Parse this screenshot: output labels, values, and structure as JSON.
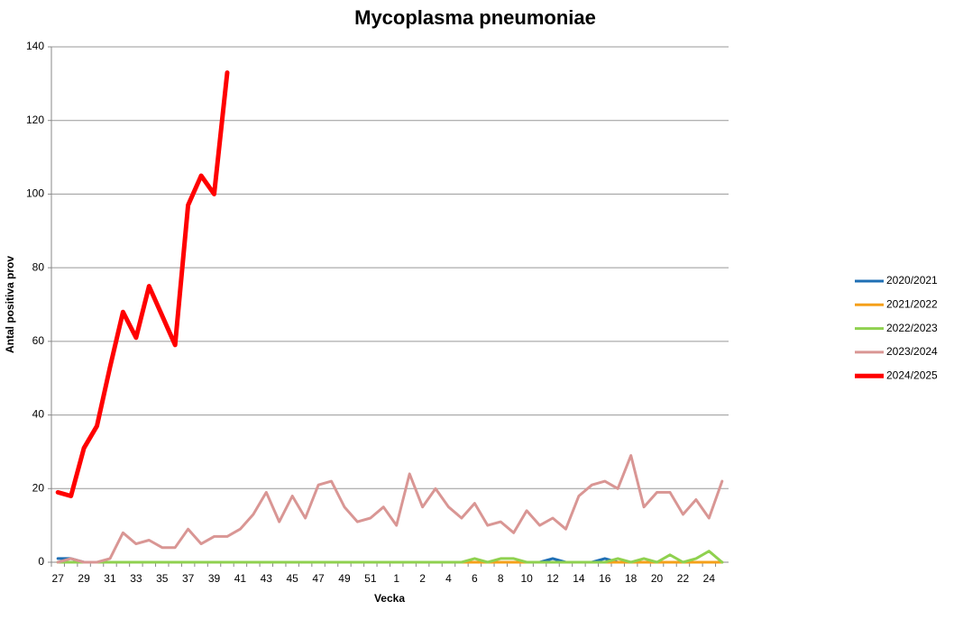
{
  "chart_data": {
    "type": "line",
    "title": "Mycoplasma pneumoniae",
    "x_label": "Vecka",
    "y_label": "Antal positiva prov",
    "categories": [
      "27",
      null,
      "29",
      null,
      "31",
      null,
      "33",
      null,
      "35",
      null,
      "37",
      null,
      "39",
      null,
      "41",
      null,
      "43",
      null,
      "45",
      null,
      "47",
      null,
      "49",
      null,
      "51",
      null,
      "1",
      null,
      "2",
      null,
      "4",
      null,
      "6",
      null,
      "8",
      null,
      "10",
      null,
      "12",
      null,
      "14",
      null,
      "16",
      null,
      "18",
      null,
      "20",
      null,
      "22",
      null,
      "24",
      null
    ],
    "ylim": [
      0,
      140
    ],
    "yticks": [
      0,
      20,
      40,
      60,
      80,
      100,
      120,
      140
    ],
    "grid": true,
    "legend": "right",
    "series": [
      {
        "name": "2020/2021",
        "color": "#1f6fb4",
        "values": [
          1,
          1,
          0,
          0,
          0,
          0,
          0,
          0,
          0,
          0,
          0,
          0,
          0,
          0,
          0,
          0,
          0,
          0,
          0,
          0,
          0,
          0,
          0,
          0,
          0,
          0,
          0,
          0,
          0,
          0,
          0,
          0,
          0,
          0,
          0,
          0,
          0,
          0,
          1,
          0,
          0,
          0,
          1,
          0,
          0,
          0,
          0,
          0,
          0,
          0,
          0,
          0
        ]
      },
      {
        "name": "2021/2022",
        "color": "#f5a01a",
        "values": [
          0,
          0,
          0,
          0,
          0,
          0,
          0,
          0,
          0,
          0,
          0,
          0,
          0,
          0,
          0,
          0,
          0,
          0,
          0,
          0,
          0,
          0,
          0,
          0,
          0,
          0,
          0,
          0,
          0,
          0,
          0,
          0,
          0,
          0,
          0,
          0,
          0,
          0,
          0,
          0,
          0,
          0,
          0,
          0,
          0,
          0,
          0,
          0,
          0,
          0,
          0,
          0
        ]
      },
      {
        "name": "2022/2023",
        "color": "#8fd14f",
        "values": [
          0,
          0,
          0,
          0,
          0,
          0,
          0,
          0,
          0,
          0,
          0,
          0,
          0,
          0,
          0,
          0,
          0,
          0,
          0,
          0,
          0,
          0,
          0,
          0,
          0,
          0,
          0,
          0,
          0,
          0,
          0,
          0,
          1,
          0,
          1,
          1,
          0,
          0,
          0,
          0,
          0,
          0,
          0,
          1,
          0,
          1,
          0,
          2,
          0,
          1,
          3,
          0
        ]
      },
      {
        "name": "2023/2024",
        "color": "#d99694",
        "values": [
          0,
          1,
          0,
          0,
          1,
          8,
          5,
          6,
          4,
          4,
          9,
          5,
          7,
          7,
          9,
          13,
          19,
          11,
          18,
          12,
          21,
          22,
          15,
          11,
          12,
          15,
          10,
          24,
          15,
          20,
          15,
          12,
          16,
          10,
          11,
          8,
          14,
          10,
          12,
          9,
          18,
          21,
          22,
          20,
          29,
          15,
          19,
          19,
          13,
          17,
          12,
          22
        ]
      },
      {
        "name": "2024/2025",
        "color": "#ff0000",
        "values": [
          19,
          18,
          31,
          37,
          53,
          68,
          61,
          75,
          67,
          59,
          97,
          105,
          100,
          133,
          null,
          null,
          null,
          null,
          null,
          null,
          null,
          null,
          null,
          null,
          null,
          null,
          null,
          null,
          null,
          null,
          null,
          null,
          null,
          null,
          null,
          null,
          null,
          null,
          null,
          null,
          null,
          null,
          null,
          null,
          null,
          null,
          null,
          null,
          null,
          null,
          null,
          null
        ]
      }
    ]
  }
}
